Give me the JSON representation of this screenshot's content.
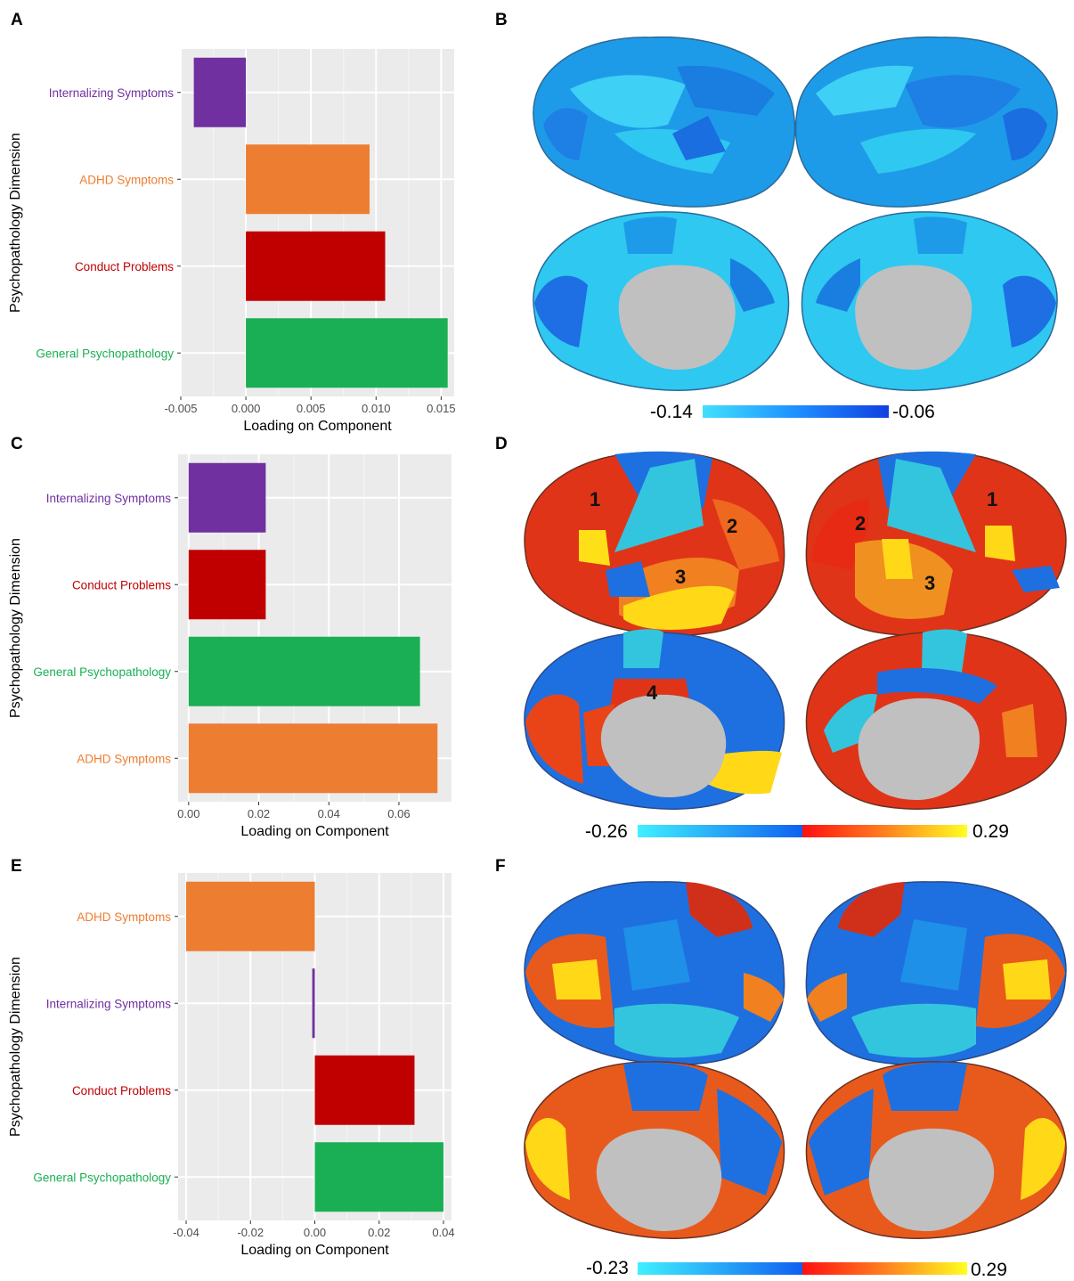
{
  "panel_letters": {
    "A": "A",
    "B": "B",
    "C": "C",
    "D": "D",
    "E": "E",
    "F": "F"
  },
  "colors": {
    "internalizing": "#7030a0",
    "adhd": "#ed7d31",
    "conduct": "#c00000",
    "general": "#1aaf54",
    "panel_bg": "#ebebeb"
  },
  "chart_data": [
    {
      "panel": "A",
      "type": "bar",
      "orientation": "horizontal",
      "categories": [
        "Internalizing Symptoms",
        "ADHD Symptoms",
        "Conduct Problems",
        "General Psychopathology"
      ],
      "values": [
        -0.004,
        0.0095,
        0.0107,
        0.0155
      ],
      "colors": [
        "#7030a0",
        "#ed7d31",
        "#c00000",
        "#1aaf54"
      ],
      "xlabel": "Loading on Component",
      "ylabel": "Psychopathology Dimension",
      "xlim": [
        -0.005,
        0.016
      ],
      "xticks": [
        -0.005,
        0.0,
        0.005,
        0.01,
        0.015
      ],
      "xtick_labels": [
        "-0.005",
        "0.000",
        "0.005",
        "0.010",
        "0.015"
      ],
      "grid": true
    },
    {
      "panel": "C",
      "type": "bar",
      "orientation": "horizontal",
      "categories": [
        "Internalizing Symptoms",
        "Conduct Problems",
        "General Psychopathology",
        "ADHD Symptoms"
      ],
      "values": [
        0.022,
        0.022,
        0.066,
        0.071
      ],
      "colors": [
        "#7030a0",
        "#c00000",
        "#1aaf54",
        "#ed7d31"
      ],
      "xlabel": "Loading on Component",
      "ylabel": "Psychopathology Dimension",
      "xlim": [
        -0.003,
        0.075
      ],
      "xticks": [
        0.0,
        0.02,
        0.04,
        0.06
      ],
      "xtick_labels": [
        "0.00",
        "0.02",
        "0.04",
        "0.06"
      ],
      "grid": true
    },
    {
      "panel": "E",
      "type": "bar",
      "orientation": "horizontal",
      "categories": [
        "ADHD Symptoms",
        "Internalizing Symptoms",
        "Conduct Problems",
        "General Psychopathology"
      ],
      "values": [
        -0.04,
        -0.0008,
        0.031,
        0.04
      ],
      "colors": [
        "#ed7d31",
        "#7030a0",
        "#c00000",
        "#1aaf54"
      ],
      "xlabel": "Loading on Component",
      "ylabel": "Psychopathology Dimension",
      "xlim": [
        -0.0425,
        0.0425
      ],
      "xticks": [
        -0.04,
        -0.02,
        0.0,
        0.02,
        0.04
      ],
      "xtick_labels": [
        "-0.04",
        "-0.02",
        "0.00",
        "0.02",
        "0.04"
      ],
      "grid": true
    }
  ],
  "brain_maps": {
    "B": {
      "cbar_min": "-0.14",
      "cbar_max": "-0.06",
      "colormap": [
        "#40e0ff",
        "#1e90ff",
        "#1040e0"
      ]
    },
    "D": {
      "cbar_min": "-0.26",
      "cbar_max": "0.29",
      "colormap": [
        "#40f0ff",
        "#1060f0",
        "#ff1010",
        "#ff8020",
        "#ffff20"
      ],
      "region_labels": [
        "1",
        "2",
        "3",
        "1",
        "2",
        "3",
        "4"
      ]
    },
    "F": {
      "cbar_min": "-0.23",
      "cbar_max": "0.29",
      "colormap": [
        "#40f0ff",
        "#1060f0",
        "#ff1010",
        "#ff8020",
        "#ffff20"
      ]
    }
  }
}
